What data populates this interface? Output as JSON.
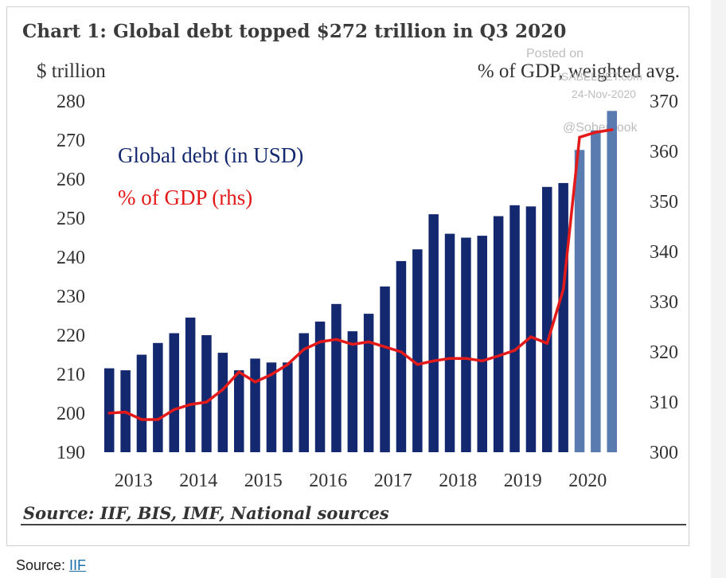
{
  "title": "Chart 1: Global debt topped $272 trillion in Q3 2020",
  "left_axis_unit": "$ trillion",
  "right_axis_unit": "% of GDP, weighted avg.",
  "watermark": {
    "line1": "Posted on",
    "line2": "ISABELNET.com",
    "line3": "24-Nov-2020",
    "line4": "@SoberLook"
  },
  "source_text": "Source: IIF, BIS, IMF, National sources",
  "caption": {
    "prefix": "Source: ",
    "link": "IIF"
  },
  "colors": {
    "bar": "#13286e",
    "bar_highlight": "#5a7bb0",
    "line": "#e41a1a"
  },
  "chart_data": {
    "type": "bar",
    "title": "Chart 1: Global debt topped $272 trillion in Q3 2020",
    "y_left": {
      "label": "$ trillion",
      "min": 190,
      "max": 280,
      "ticks": [
        190,
        200,
        210,
        220,
        230,
        240,
        250,
        260,
        270,
        280
      ]
    },
    "y_right": {
      "label": "% of GDP, weighted avg.",
      "min": 300,
      "max": 370,
      "ticks": [
        300,
        310,
        320,
        330,
        340,
        350,
        360,
        370
      ]
    },
    "x_tick_labels": [
      "2013",
      "2014",
      "2015",
      "2016",
      "2017",
      "2018",
      "2019",
      "2020"
    ],
    "legend": [
      "Global debt (in USD)",
      "% of GDP (rhs)"
    ],
    "series": [
      {
        "name": "Global debt (in USD)",
        "axis": "left",
        "kind": "bar",
        "values": [
          211.5,
          211,
          215,
          218,
          220.5,
          224.5,
          220,
          215.5,
          211,
          214,
          213,
          213,
          220.5,
          223.5,
          228,
          221,
          225.5,
          232.5,
          239,
          242,
          251,
          246,
          245,
          245.5,
          250.5,
          253.3,
          253,
          258,
          259,
          267.5,
          272.5,
          277.5
        ]
      },
      {
        "name": "% of GDP (rhs)",
        "axis": "right",
        "kind": "line",
        "values": [
          307.8,
          308,
          306.5,
          306.5,
          308.5,
          309.5,
          310,
          312.5,
          316,
          314,
          315.5,
          317.5,
          320.5,
          322,
          322.5,
          321.5,
          322,
          321,
          320,
          317.5,
          318.2,
          318.7,
          318.7,
          318.2,
          319.2,
          320.3,
          323,
          321.7,
          332.5,
          362.8,
          363.8,
          364.3
        ]
      }
    ],
    "highlight_last": 3,
    "grid": false,
    "legend_placement": "top-left"
  }
}
